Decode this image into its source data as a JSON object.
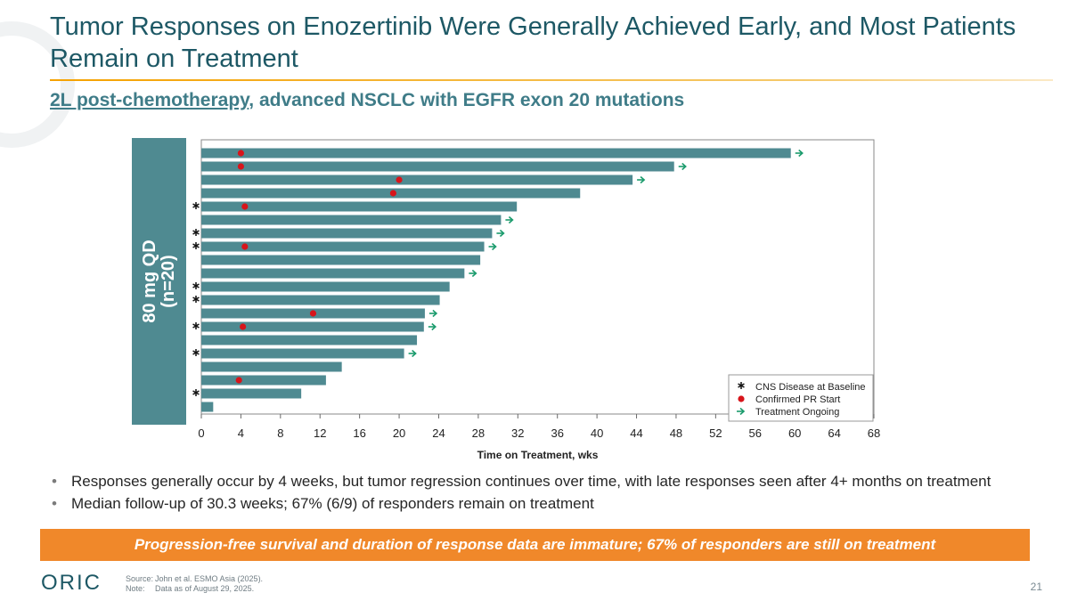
{
  "slide": {
    "title": "Tumor Responses on Enozertinib Were Generally Achieved Early, and Most Patients Remain on Treatment",
    "subtitle_link": "2L post-chemotherapy",
    "subtitle_rest": ", advanced NSCLC with EGFR exon 20 mutations",
    "arm_label_line1": "80 mg QD",
    "arm_label_line2": "(n=20)",
    "bullets": [
      "Responses generally occur by 4 weeks, but tumor regression continues over time, with late responses seen after 4+ months on treatment",
      "Median follow-up of 30.3 weeks; 67% (6/9) of responders remain on treatment"
    ],
    "banner": "Progression-free survival and duration of response data are immature; 67% of responders are still on treatment",
    "footnote": {
      "source_key": "Source:",
      "source_text": "John et al. ESMO Asia (2025).",
      "note_key": "Note:",
      "note_text": "Data as of August 29, 2025."
    },
    "page_number": "21",
    "logo_text": "ORIC"
  },
  "colors": {
    "title": "#1d5865",
    "bar": "#4f8a91",
    "pr_marker": "#d7151b",
    "ongoing_arrow": "#1a9b6c",
    "banner": "#f0882a",
    "accent_rule": "#f5a200"
  },
  "chart_data": {
    "type": "bar",
    "orientation": "horizontal",
    "title": "",
    "xlabel": "Time on Treatment, wks",
    "ylabel": "80 mg QD (n=20)",
    "xlim": [
      0,
      68
    ],
    "xticks": [
      0,
      4,
      8,
      12,
      16,
      20,
      24,
      28,
      32,
      36,
      40,
      44,
      48,
      52,
      56,
      60,
      64,
      68
    ],
    "grid": false,
    "legend": {
      "position": "bottom-right",
      "entries": [
        "CNS Disease at Baseline",
        "Confirmed PR Start",
        "Treatment Ongoing"
      ]
    },
    "patients": [
      {
        "duration": 59.6,
        "cns": false,
        "pr_start": 4.0,
        "ongoing": true
      },
      {
        "duration": 47.8,
        "cns": false,
        "pr_start": 4.0,
        "ongoing": true
      },
      {
        "duration": 43.6,
        "cns": false,
        "pr_start": 20.0,
        "ongoing": true
      },
      {
        "duration": 38.3,
        "cns": false,
        "pr_start": 19.4,
        "ongoing": false
      },
      {
        "duration": 31.9,
        "cns": true,
        "pr_start": 4.4,
        "ongoing": false
      },
      {
        "duration": 30.3,
        "cns": false,
        "pr_start": null,
        "ongoing": true
      },
      {
        "duration": 29.4,
        "cns": true,
        "pr_start": null,
        "ongoing": true
      },
      {
        "duration": 28.6,
        "cns": true,
        "pr_start": 4.4,
        "ongoing": true
      },
      {
        "duration": 28.2,
        "cns": false,
        "pr_start": null,
        "ongoing": false
      },
      {
        "duration": 26.6,
        "cns": false,
        "pr_start": null,
        "ongoing": true
      },
      {
        "duration": 25.1,
        "cns": true,
        "pr_start": null,
        "ongoing": false
      },
      {
        "duration": 24.1,
        "cns": true,
        "pr_start": null,
        "ongoing": false
      },
      {
        "duration": 22.6,
        "cns": false,
        "pr_start": 11.3,
        "ongoing": true
      },
      {
        "duration": 22.5,
        "cns": true,
        "pr_start": 4.2,
        "ongoing": true
      },
      {
        "duration": 21.8,
        "cns": false,
        "pr_start": null,
        "ongoing": false
      },
      {
        "duration": 20.5,
        "cns": true,
        "pr_start": null,
        "ongoing": true
      },
      {
        "duration": 14.2,
        "cns": false,
        "pr_start": null,
        "ongoing": false
      },
      {
        "duration": 12.6,
        "cns": false,
        "pr_start": 3.8,
        "ongoing": false
      },
      {
        "duration": 10.1,
        "cns": true,
        "pr_start": null,
        "ongoing": false
      },
      {
        "duration": 1.2,
        "cns": false,
        "pr_start": null,
        "ongoing": false
      }
    ]
  }
}
